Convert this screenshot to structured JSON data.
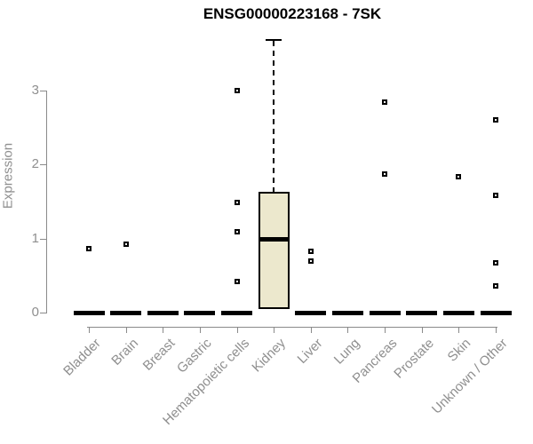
{
  "title": "ENSG00000223168 - 7SK",
  "colors": {
    "background": "#ffffff",
    "title_text": "#000000",
    "axis_line": "#8a8a8a",
    "axis_text": "#8f8f8f",
    "box_fill": "#ece8cd",
    "box_border": "#000000",
    "marker": "#000000"
  },
  "chart_data": {
    "type": "boxplot",
    "title": "ENSG00000223168 - 7SK",
    "xlabel": "",
    "ylabel": "Expression",
    "ylim": [
      0,
      3
    ],
    "yticks": [
      0,
      1,
      2,
      3
    ],
    "grid": false,
    "legend": false,
    "categories": [
      "Bladder",
      "Brain",
      "Breast",
      "Gastric",
      "Hematopoietic cells",
      "Kidney",
      "Liver",
      "Lung",
      "Pancreas",
      "Prostate",
      "Skin",
      "Unknown / Other"
    ],
    "boxes": [
      {
        "category": "Bladder",
        "q1": 0,
        "median": 0,
        "q3": 0,
        "whisker_low": 0,
        "whisker_high": 0,
        "outliers": [
          0.86
        ]
      },
      {
        "category": "Brain",
        "q1": 0,
        "median": 0,
        "q3": 0,
        "whisker_low": 0,
        "whisker_high": 0,
        "outliers": [
          0.92
        ]
      },
      {
        "category": "Breast",
        "q1": 0,
        "median": 0,
        "q3": 0,
        "whisker_low": 0,
        "whisker_high": 0,
        "outliers": []
      },
      {
        "category": "Gastric",
        "q1": 0,
        "median": 0,
        "q3": 0,
        "whisker_low": 0,
        "whisker_high": 0,
        "outliers": []
      },
      {
        "category": "Hematopoietic cells",
        "q1": 0,
        "median": 0,
        "q3": 0,
        "whisker_low": 0,
        "whisker_high": 0,
        "outliers": [
          3.0,
          1.49,
          1.09,
          0.42
        ]
      },
      {
        "category": "Kidney",
        "q1": 0.05,
        "median": 1.0,
        "q3": 1.63,
        "whisker_low": 0.05,
        "whisker_high": 3.7,
        "outliers": []
      },
      {
        "category": "Liver",
        "q1": 0,
        "median": 0,
        "q3": 0,
        "whisker_low": 0,
        "whisker_high": 0,
        "outliers": [
          0.83,
          0.7
        ]
      },
      {
        "category": "Lung",
        "q1": 0,
        "median": 0,
        "q3": 0,
        "whisker_low": 0,
        "whisker_high": 0,
        "outliers": []
      },
      {
        "category": "Pancreas",
        "q1": 0,
        "median": 0,
        "q3": 0,
        "whisker_low": 0,
        "whisker_high": 0,
        "outliers": [
          2.85,
          1.87
        ]
      },
      {
        "category": "Prostate",
        "q1": 0,
        "median": 0,
        "q3": 0,
        "whisker_low": 0,
        "whisker_high": 0,
        "outliers": []
      },
      {
        "category": "Skin",
        "q1": 0,
        "median": 0,
        "q3": 0,
        "whisker_low": 0,
        "whisker_high": 0,
        "outliers": [
          1.84
        ]
      },
      {
        "category": "Unknown / Other",
        "q1": 0,
        "median": 0,
        "q3": 0,
        "whisker_low": 0,
        "whisker_high": 0,
        "outliers": [
          2.6,
          1.58,
          0.67,
          0.36
        ]
      }
    ]
  }
}
